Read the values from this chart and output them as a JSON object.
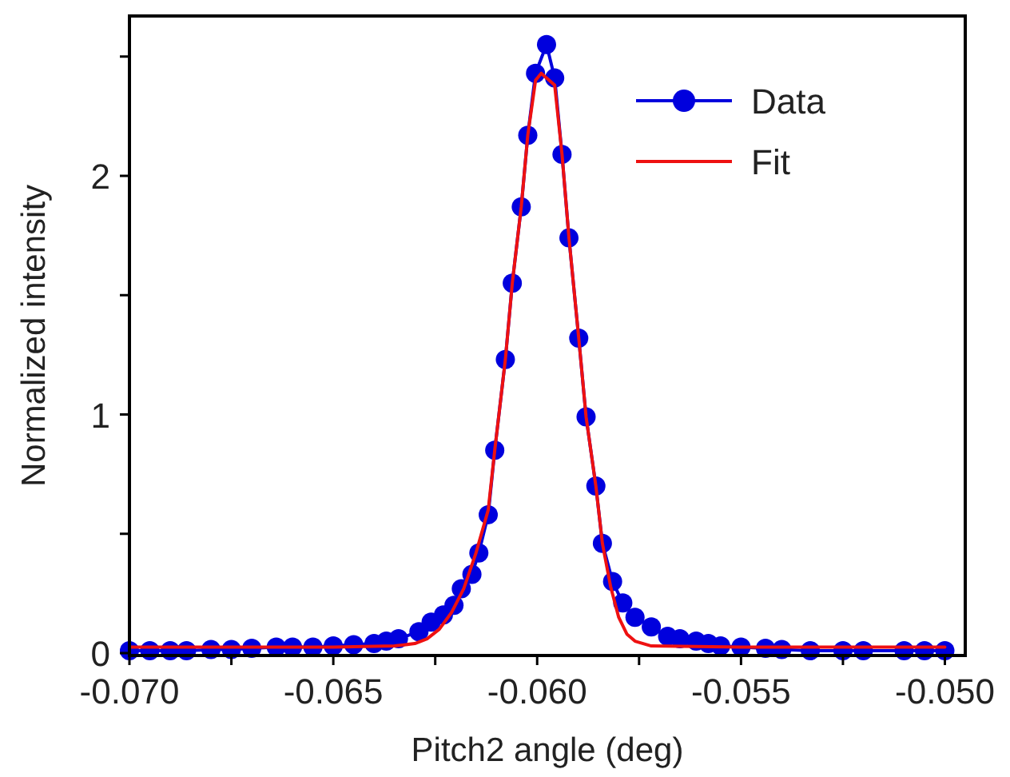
{
  "chart_data": {
    "type": "line",
    "xlabel": "Pitch2 angle (deg)",
    "ylabel": "Normalized intensity",
    "xlim": [
      -0.07,
      -0.0495
    ],
    "ylim": [
      -0.01,
      2.67
    ],
    "xticks": [
      {
        "value": -0.07,
        "label": "-0.070"
      },
      {
        "value": -0.0675,
        "label": null
      },
      {
        "value": -0.065,
        "label": "-0.065"
      },
      {
        "value": -0.0625,
        "label": null
      },
      {
        "value": -0.06,
        "label": "-0.060"
      },
      {
        "value": -0.0575,
        "label": null
      },
      {
        "value": -0.055,
        "label": "-0.055"
      },
      {
        "value": -0.0525,
        "label": null
      },
      {
        "value": -0.05,
        "label": "-0.050"
      }
    ],
    "yticks": [
      0,
      {
        "value": 0.5,
        "label": null
      },
      1,
      {
        "value": 1.5,
        "label": null
      },
      2,
      {
        "value": 2.5,
        "label": null
      }
    ],
    "grid": false,
    "legend": "top right",
    "series": [
      {
        "name": "Data",
        "color": "#0000dd",
        "marker": "circle",
        "x": [
          -0.07,
          -0.0695,
          -0.069,
          -0.0686,
          -0.068,
          -0.0675,
          -0.067,
          -0.0664,
          -0.066,
          -0.0655,
          -0.065,
          -0.0645,
          -0.064,
          -0.0637,
          -0.0634,
          -0.0629,
          -0.0626,
          -0.0623,
          -0.06204,
          -0.06186,
          -0.0616,
          -0.06143,
          -0.0612,
          -0.06104,
          -0.06078,
          -0.06061,
          -0.06039,
          -0.06023,
          -0.06004,
          -0.05977,
          -0.05957,
          -0.05939,
          -0.05922,
          -0.05898,
          -0.0588,
          -0.05856,
          -0.0584,
          -0.05815,
          -0.0579,
          -0.0576,
          -0.0572,
          -0.0568,
          -0.0565,
          -0.0561,
          -0.0558,
          -0.0555,
          -0.055,
          -0.0544,
          -0.054,
          -0.0533,
          -0.0525,
          -0.052,
          -0.051,
          -0.0505,
          -0.05
        ],
        "values": [
          0.01,
          0.01,
          0.01,
          0.01,
          0.015,
          0.015,
          0.02,
          0.025,
          0.025,
          0.025,
          0.03,
          0.035,
          0.04,
          0.05,
          0.06,
          0.09,
          0.13,
          0.16,
          0.2,
          0.27,
          0.33,
          0.42,
          0.58,
          0.85,
          1.23,
          1.55,
          1.87,
          2.17,
          2.43,
          2.55,
          2.41,
          2.09,
          1.74,
          1.32,
          0.99,
          0.7,
          0.46,
          0.3,
          0.21,
          0.15,
          0.11,
          0.07,
          0.06,
          0.05,
          0.04,
          0.03,
          0.025,
          0.02,
          0.015,
          0.01,
          0.01,
          0.01,
          0.01,
          0.01,
          0.01
        ]
      },
      {
        "name": "Fit",
        "color": "#ee1111",
        "marker": "none",
        "x": [
          -0.07,
          -0.065,
          -0.0635,
          -0.063,
          -0.0627,
          -0.0624,
          -0.0621,
          -0.0618,
          -0.0615,
          -0.0612,
          -0.06104,
          -0.06078,
          -0.06061,
          -0.06039,
          -0.06023,
          -0.06004,
          -0.0599,
          -0.05957,
          -0.05939,
          -0.05922,
          -0.05898,
          -0.0588,
          -0.05856,
          -0.0584,
          -0.0582,
          -0.058,
          -0.0578,
          -0.0576,
          -0.0572,
          -0.055,
          -0.05
        ],
        "values": [
          0.025,
          0.025,
          0.03,
          0.04,
          0.06,
          0.1,
          0.17,
          0.27,
          0.42,
          0.6,
          0.85,
          1.23,
          1.55,
          1.87,
          2.17,
          2.4,
          2.43,
          2.38,
          2.09,
          1.74,
          1.32,
          0.99,
          0.7,
          0.46,
          0.28,
          0.15,
          0.08,
          0.05,
          0.03,
          0.025,
          0.025
        ]
      }
    ]
  }
}
